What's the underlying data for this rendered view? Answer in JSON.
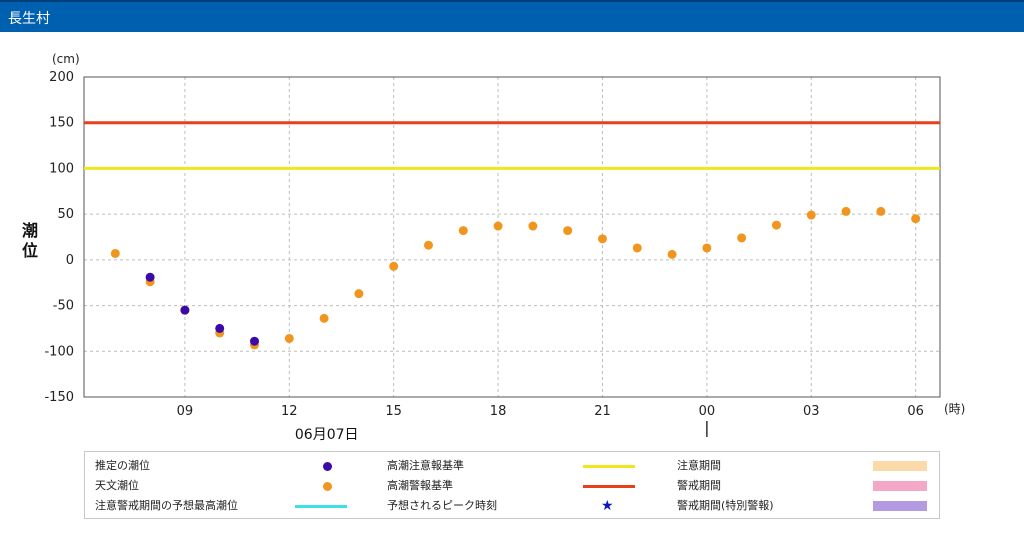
{
  "header": {
    "title": "長生村"
  },
  "chart_data": {
    "type": "scatter",
    "ylabel": "潮位",
    "yunit": "(cm)",
    "xunit": "(時)",
    "ylim": [
      -150,
      200
    ],
    "yticks": [
      -150,
      -100,
      -50,
      0,
      50,
      100,
      150,
      200
    ],
    "grid": true,
    "x_tick_labels": [
      {
        "hour": 9,
        "label": "09"
      },
      {
        "hour": 12,
        "label": "12"
      },
      {
        "hour": 15,
        "label": "15"
      },
      {
        "hour": 18,
        "label": "18"
      },
      {
        "hour": 21,
        "label": "21"
      },
      {
        "hour": 24,
        "label": "00"
      },
      {
        "hour": 27,
        "label": "03"
      },
      {
        "hour": 30,
        "label": "06"
      }
    ],
    "x_range_hours": [
      6.1,
      30.7
    ],
    "date_label": "06月07日",
    "date_label_hour": 12.5,
    "day_boundary_hour": 24,
    "reference_lines": [
      {
        "name": "高潮警報基準",
        "value": 150,
        "color": "#e8401c"
      },
      {
        "name": "高潮注意報基準",
        "value": 100,
        "color": "#f0e61e"
      }
    ],
    "series": [
      {
        "name": "天文潮位",
        "color": "#f0961e",
        "points": [
          [
            7,
            7
          ],
          [
            8,
            -24
          ],
          [
            9,
            -55
          ],
          [
            10,
            -80
          ],
          [
            11,
            -93
          ],
          [
            12,
            -86
          ],
          [
            13,
            -64
          ],
          [
            14,
            -37
          ],
          [
            15,
            -7
          ],
          [
            16,
            16
          ],
          [
            17,
            32
          ],
          [
            18,
            37
          ],
          [
            19,
            37
          ],
          [
            20,
            32
          ],
          [
            21,
            23
          ],
          [
            22,
            13
          ],
          [
            23,
            6
          ],
          [
            24,
            13
          ],
          [
            25,
            24
          ],
          [
            26,
            38
          ],
          [
            27,
            49
          ],
          [
            28,
            53
          ],
          [
            29,
            53
          ],
          [
            30,
            45
          ]
        ]
      },
      {
        "name": "推定の潮位",
        "color": "#3a0aa8",
        "points": [
          [
            8,
            -19
          ],
          [
            9,
            -55
          ],
          [
            10,
            -75
          ],
          [
            11,
            -89
          ]
        ]
      }
    ]
  },
  "legend": {
    "items": [
      {
        "label": "推定の潮位",
        "kind": "dot",
        "color": "#3a0aa8"
      },
      {
        "label": "天文潮位",
        "kind": "dot",
        "color": "#f0961e"
      },
      {
        "label": "注意警戒期間の予想最高潮位",
        "kind": "bar",
        "color": "#3ee0e6"
      },
      {
        "label": "高潮注意報基準",
        "kind": "bar",
        "color": "#f0e61e"
      },
      {
        "label": "高潮警報基準",
        "kind": "bar",
        "color": "#e8401c"
      },
      {
        "label": "予想されるピーク時刻",
        "kind": "star",
        "color": "#0a14c8"
      },
      {
        "label": "注意期間",
        "kind": "swatch",
        "color": "#fbd9a8"
      },
      {
        "label": "警戒期間",
        "kind": "swatch",
        "color": "#f4a8c8"
      },
      {
        "label": "警戒期間(特別警報)",
        "kind": "swatch",
        "color": "#b49ae0"
      }
    ]
  }
}
